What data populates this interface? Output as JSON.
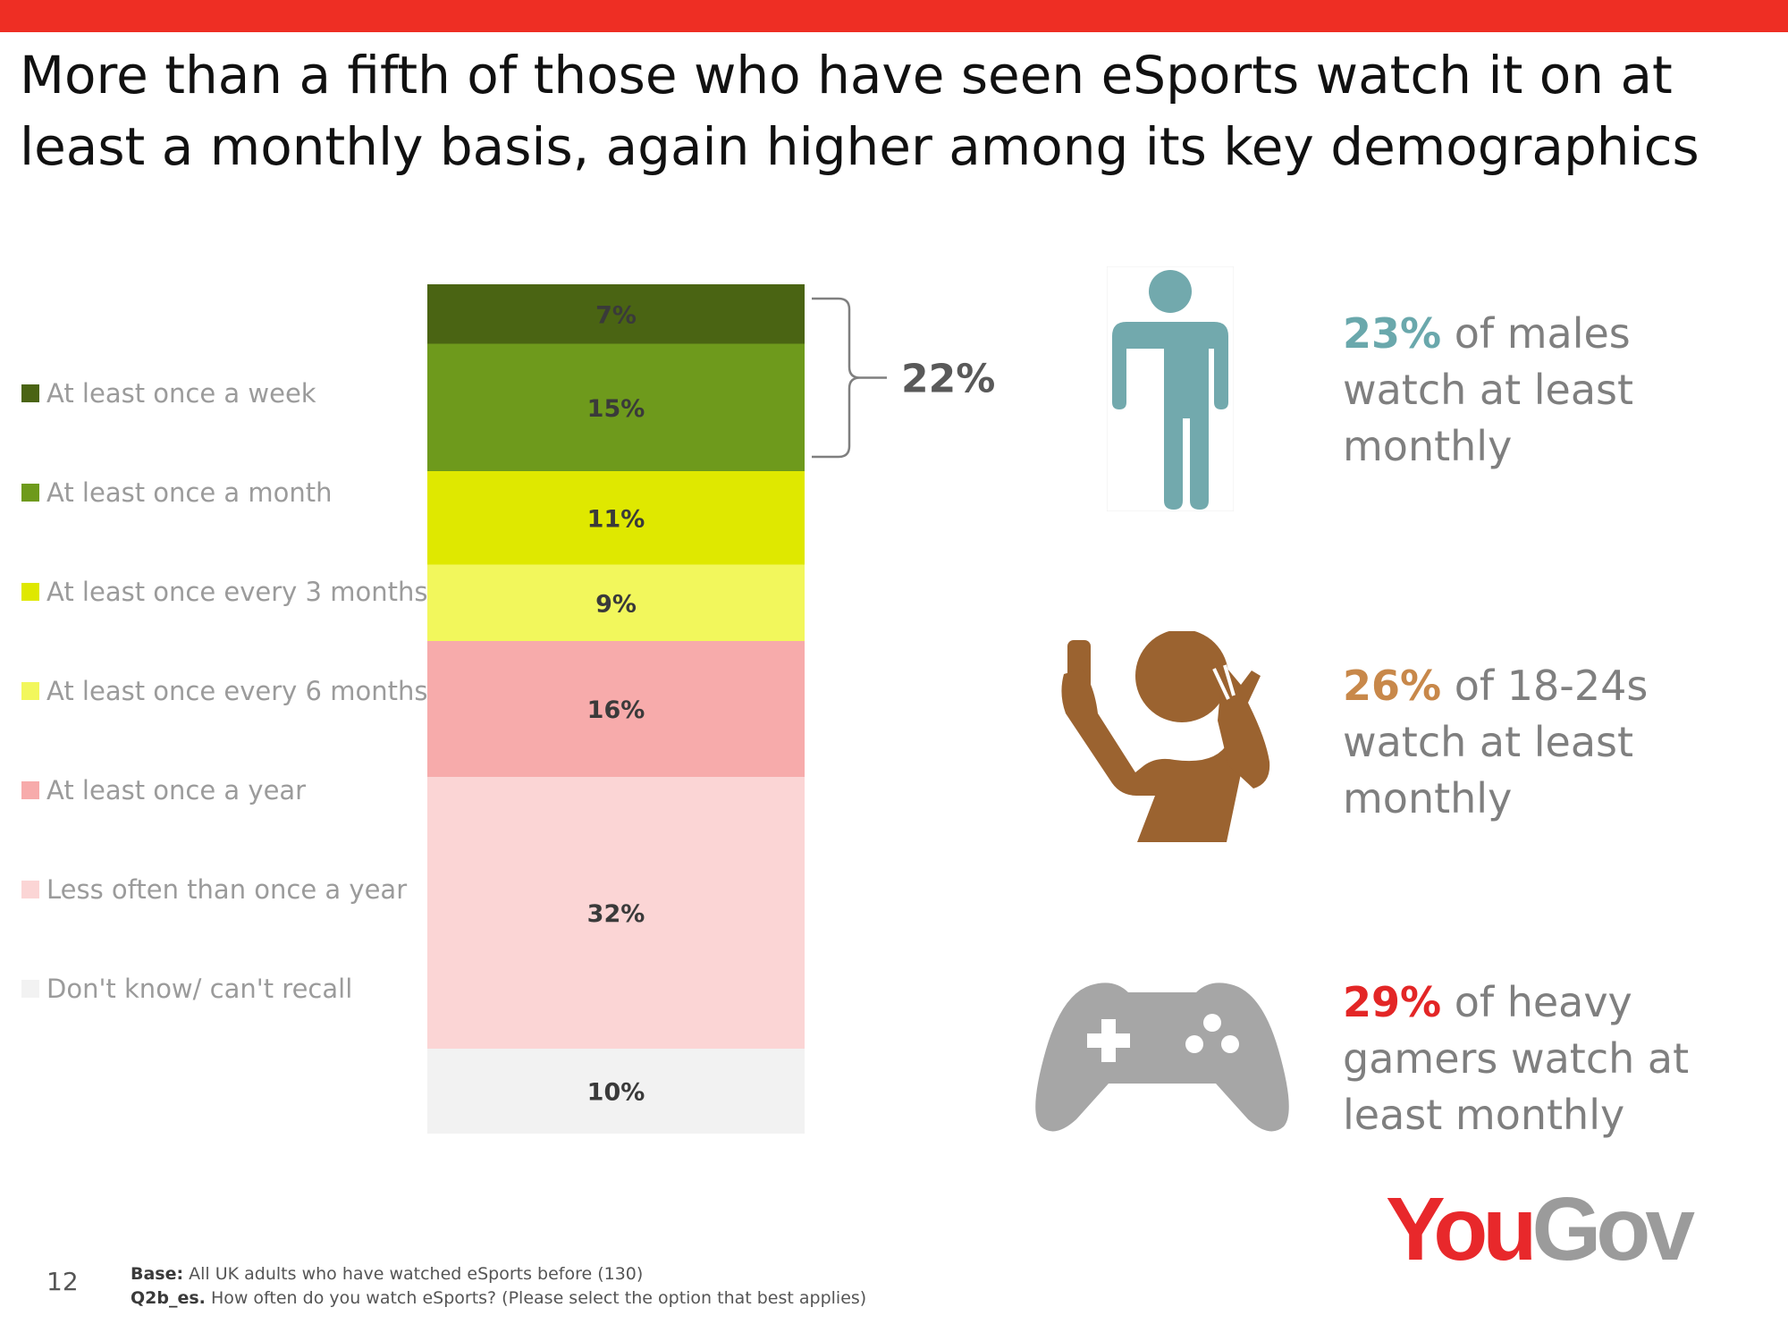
{
  "title": "More than a fifth of those who have seen eSports watch it on at least a monthly basis, again higher among its key demographics",
  "chart_data": {
    "type": "bar",
    "stacked": true,
    "orientation": "vertical",
    "series": [
      {
        "name": "At least once a week",
        "value": 7,
        "label": "7%",
        "color": "#4a6413"
      },
      {
        "name": "At least once a month",
        "value": 15,
        "label": "15%",
        "color": "#6e9a1c"
      },
      {
        "name": "At least once every 3 months",
        "value": 11,
        "label": "11%",
        "color": "#dfe800"
      },
      {
        "name": "At least once every 6 months",
        "value": 9,
        "label": "9%",
        "color": "#f2f75c"
      },
      {
        "name": "At least once a year",
        "value": 16,
        "label": "16%",
        "color": "#f7abab"
      },
      {
        "name": "Less often than once a year",
        "value": 32,
        "label": "32%",
        "color": "#fbd5d5"
      },
      {
        "name": "Don't know/ can't recall",
        "value": 10,
        "label": "10%",
        "color": "#f2f2f2"
      }
    ],
    "bracket": {
      "label": "22%",
      "spans": [
        "At least once a week",
        "At least once a month"
      ]
    }
  },
  "stats": [
    {
      "pct": "23%",
      "text": "of males watch at least monthly",
      "color": "#6aa8ac",
      "icon": "male-person-icon"
    },
    {
      "pct": "26%",
      "text": "of 18-24s watch at least monthly",
      "color": "#c8884a",
      "icon": "selfie-person-icon"
    },
    {
      "pct": "29%",
      "text": "of heavy gamers watch at least monthly",
      "color": "#e32626",
      "icon": "gamepad-icon"
    }
  ],
  "icon_colors": {
    "male": "#72a9ad",
    "selfie": "#9b6330",
    "gamepad": "#a6a6a6"
  },
  "footer": {
    "page_number": "12",
    "base_label": "Base:",
    "base_text": "All UK adults who have watched eSports before (130)",
    "question_label": "Q2b_es.",
    "question_text": "How often do you watch eSports? (Please select the option that best applies)"
  },
  "logo": {
    "you": "You",
    "gov": "Gov"
  }
}
